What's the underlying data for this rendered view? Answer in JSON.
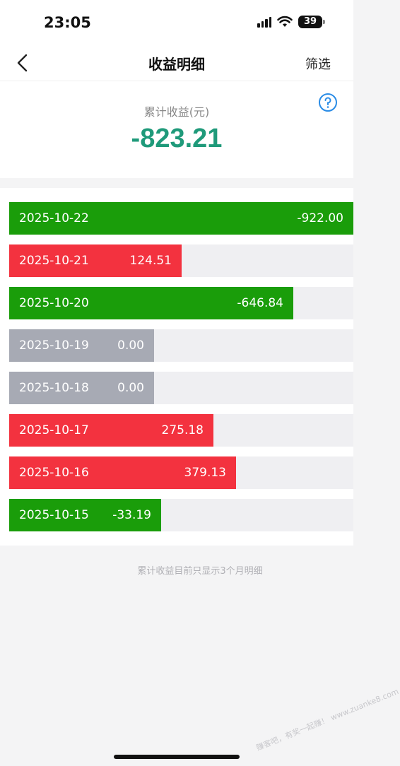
{
  "status": {
    "time": "23:05",
    "battery": "39"
  },
  "nav": {
    "title": "收益明细",
    "filter_label": "筛选"
  },
  "summary": {
    "label": "累计收益(元)",
    "value": "-823.21"
  },
  "colors": {
    "positive": "#f3323f",
    "negative": "#1a9d0a",
    "zero": "#a7aab4",
    "track": "#efeff2",
    "total": "#1f9a7a"
  },
  "records": [
    {
      "date": "2025-10-22",
      "amount": "-922.00",
      "fill": 1.0,
      "type": "negative"
    },
    {
      "date": "2025-10-21",
      "amount": "124.51",
      "fill": 0.5,
      "type": "positive"
    },
    {
      "date": "2025-10-20",
      "amount": "-646.84",
      "fill": 0.825,
      "type": "negative"
    },
    {
      "date": "2025-10-19",
      "amount": "0.00",
      "fill": 0.421,
      "type": "zero"
    },
    {
      "date": "2025-10-18",
      "amount": "0.00",
      "fill": 0.421,
      "type": "zero"
    },
    {
      "date": "2025-10-17",
      "amount": "275.18",
      "fill": 0.593,
      "type": "positive"
    },
    {
      "date": "2025-10-16",
      "amount": "379.13",
      "fill": 0.659,
      "type": "positive"
    },
    {
      "date": "2025-10-15",
      "amount": "-33.19",
      "fill": 0.441,
      "type": "negative"
    }
  ],
  "footnote": "累计收益目前只显示3个月明细",
  "watermark": "赚客吧，有奖一起赚！ www.zuanke8.com"
}
